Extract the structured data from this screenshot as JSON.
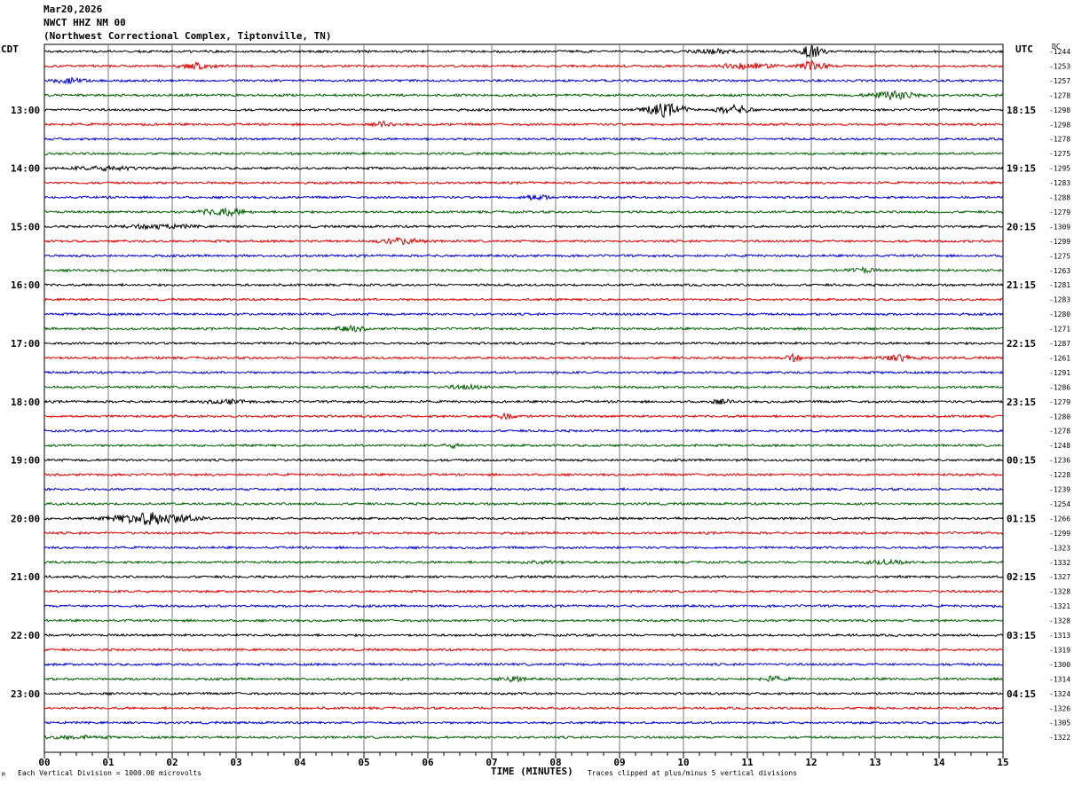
{
  "header": {
    "date": "Mar20,2026",
    "station": "NWCT HHZ NM 00",
    "location": "(Northwest Correctional Complex, Tiptonville, TN)"
  },
  "left_zone": "CDT",
  "right_zone": "UTC",
  "dc_label": "DC",
  "x_title": "TIME (MINUTES)",
  "footer_left": "Each Vertical Division = 1000.00 microvolts",
  "footer_right": "Traces clipped at plus/minus 5 vertical divisions",
  "corner_mark": "M",
  "colors": {
    "trace": [
      "#000000",
      "#e00000",
      "#0000d0",
      "#006000"
    ],
    "grid": "#7a7a7a"
  },
  "chart_data": {
    "type": "line",
    "title": "NWCT HHZ NM 00",
    "xlabel": "TIME (MINUTES)",
    "xlim": [
      0,
      15
    ],
    "x_ticks": [
      "00",
      "01",
      "02",
      "03",
      "04",
      "05",
      "06",
      "07",
      "08",
      "09",
      "10",
      "11",
      "12",
      "13",
      "14",
      "15"
    ],
    "left_hour_labels": [
      "13:00",
      "14:00",
      "15:00",
      "16:00",
      "17:00",
      "18:00",
      "19:00",
      "20:00",
      "21:00",
      "22:00",
      "23:00"
    ],
    "right_hour_labels": [
      "18:15",
      "19:15",
      "20:15",
      "21:15",
      "22:15",
      "23:15",
      "00:15",
      "01:15",
      "02:15",
      "03:15",
      "04:15"
    ],
    "first_labeled_row": 4,
    "dc_offsets": [
      -1244,
      -1253,
      -1257,
      -1278,
      -1298,
      -1298,
      -1278,
      -1275,
      -1295,
      -1283,
      -1288,
      -1279,
      -1309,
      -1299,
      -1275,
      -1263,
      -1281,
      -1283,
      -1280,
      -1271,
      -1287,
      -1261,
      -1291,
      -1286,
      -1279,
      -1280,
      -1278,
      -1248,
      -1236,
      -1228,
      -1239,
      -1254,
      -1266,
      -1299,
      -1323,
      -1332,
      -1327,
      -1328,
      -1321,
      -1328,
      -1313,
      -1319,
      -1300,
      -1314,
      -1324,
      -1326,
      -1305,
      -1322
    ],
    "events": [
      {
        "row": 0,
        "minute": 12.0,
        "amp": 7.5,
        "width": 0.3
      },
      {
        "row": 0,
        "minute": 10.5,
        "amp": 2.0,
        "width": 0.5
      },
      {
        "row": 1,
        "minute": 11.0,
        "amp": 3.0,
        "width": 0.6
      },
      {
        "row": 1,
        "minute": 12.0,
        "amp": 5.0,
        "width": 0.35
      },
      {
        "row": 1,
        "minute": 2.4,
        "amp": 3.0,
        "width": 0.4
      },
      {
        "row": 2,
        "minute": 0.4,
        "amp": 3.0,
        "width": 0.4
      },
      {
        "row": 3,
        "minute": 13.3,
        "amp": 4.5,
        "width": 0.6
      },
      {
        "row": 4,
        "minute": 9.7,
        "amp": 7.0,
        "width": 0.5
      },
      {
        "row": 4,
        "minute": 10.8,
        "amp": 4.5,
        "width": 0.4
      },
      {
        "row": 5,
        "minute": 5.3,
        "amp": 3.0,
        "width": 0.2
      },
      {
        "row": 8,
        "minute": 1.0,
        "amp": 2.0,
        "width": 0.8
      },
      {
        "row": 10,
        "minute": 7.7,
        "amp": 3.0,
        "width": 0.3
      },
      {
        "row": 11,
        "minute": 2.8,
        "amp": 4.0,
        "width": 0.5
      },
      {
        "row": 12,
        "minute": 1.8,
        "amp": 2.0,
        "width": 0.8
      },
      {
        "row": 13,
        "minute": 5.6,
        "amp": 3.0,
        "width": 0.5
      },
      {
        "row": 15,
        "minute": 12.8,
        "amp": 2.5,
        "width": 0.3
      },
      {
        "row": 19,
        "minute": 4.8,
        "amp": 3.0,
        "width": 0.3
      },
      {
        "row": 21,
        "minute": 11.7,
        "amp": 3.5,
        "width": 0.2
      },
      {
        "row": 21,
        "minute": 13.4,
        "amp": 3.0,
        "width": 0.5
      },
      {
        "row": 23,
        "minute": 6.6,
        "amp": 2.0,
        "width": 0.4
      },
      {
        "row": 24,
        "minute": 2.9,
        "amp": 2.0,
        "width": 0.5
      },
      {
        "row": 24,
        "minute": 10.6,
        "amp": 2.0,
        "width": 0.3
      },
      {
        "row": 25,
        "minute": 7.2,
        "amp": 2.5,
        "width": 0.3
      },
      {
        "row": 27,
        "minute": 6.4,
        "amp": 2.0,
        "width": 0.2
      },
      {
        "row": 32,
        "minute": 1.7,
        "amp": 7.0,
        "width": 0.9
      },
      {
        "row": 35,
        "minute": 7.8,
        "amp": 2.0,
        "width": 0.4
      },
      {
        "row": 35,
        "minute": 13.2,
        "amp": 2.0,
        "width": 0.5
      },
      {
        "row": 43,
        "minute": 7.3,
        "amp": 3.0,
        "width": 0.3
      },
      {
        "row": 43,
        "minute": 11.4,
        "amp": 2.5,
        "width": 0.3
      },
      {
        "row": 47,
        "minute": 0.5,
        "amp": 1.5,
        "width": 0.6
      }
    ]
  }
}
